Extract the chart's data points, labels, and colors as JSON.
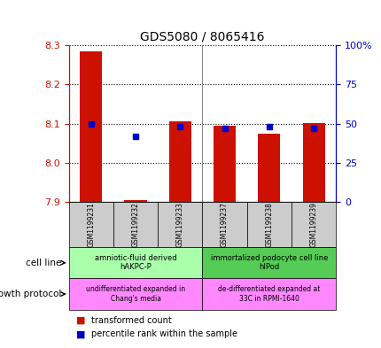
{
  "title": "GDS5080 / 8065416",
  "samples": [
    "GSM1199231",
    "GSM1199232",
    "GSM1199233",
    "GSM1199237",
    "GSM1199238",
    "GSM1199239"
  ],
  "transformed_counts": [
    8.285,
    7.905,
    8.105,
    8.095,
    8.075,
    8.102
  ],
  "percentile_ranks": [
    50,
    42,
    48,
    47,
    48,
    47
  ],
  "ylim_left": [
    7.9,
    8.3
  ],
  "ylim_right": [
    0,
    100
  ],
  "yticks_left": [
    7.9,
    8.0,
    8.1,
    8.2,
    8.3
  ],
  "yticks_right": [
    0,
    25,
    50,
    75,
    100
  ],
  "ytick_labels_right": [
    "0",
    "25",
    "50",
    "75",
    "100%"
  ],
  "bar_color": "#cc1100",
  "dot_color": "#0000cc",
  "bar_bottom": 7.9,
  "cell_line_group1_label": "amniotic-fluid derived\nhAKPC-P",
  "cell_line_group1_color": "#aaffaa",
  "cell_line_group2_label": "immortalized podocyte cell line\nhIPod",
  "cell_line_group2_color": "#55cc55",
  "growth_protocol_group1_label": "undifferentiated expanded in\nChang's media",
  "growth_protocol_group1_color": "#ff88ff",
  "growth_protocol_group2_label": "de-differentiated expanded at\n33C in RPMI-1640",
  "growth_protocol_group2_color": "#ff88ff",
  "cell_line_label": "cell line",
  "growth_protocol_label": "growth protocol",
  "legend_red_label": "transformed count",
  "legend_blue_label": "percentile rank within the sample",
  "tick_label_color_left": "#cc1100",
  "tick_label_color_right": "#0000cc",
  "xtick_bg_color": "#cccccc"
}
